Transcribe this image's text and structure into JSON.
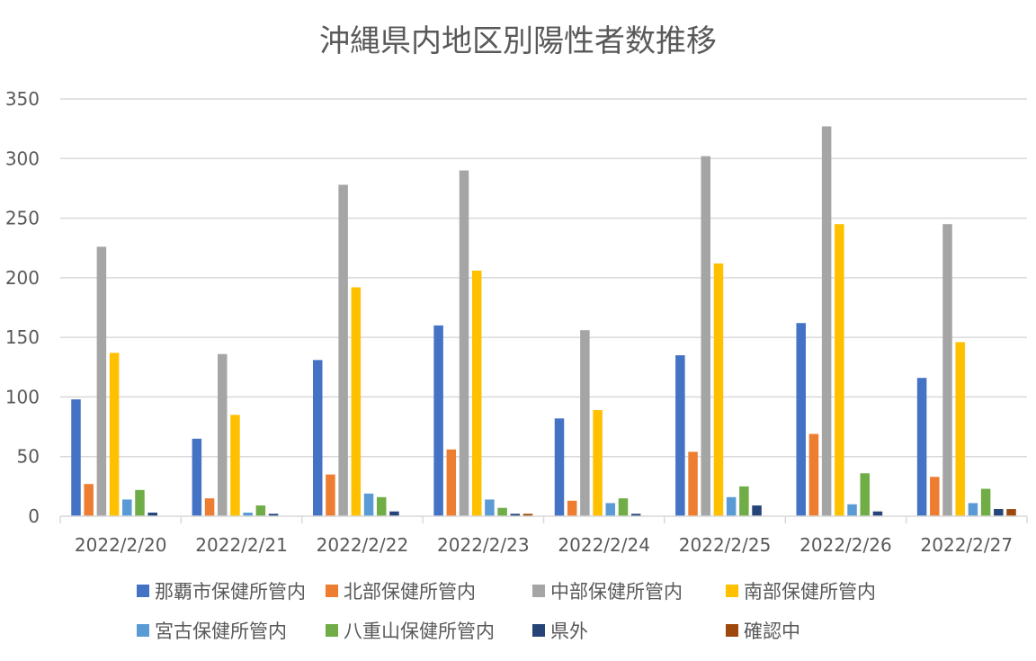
{
  "chart_data": {
    "type": "bar",
    "title": "沖縄県内地区別陽性者数推移",
    "xlabel": "",
    "ylabel": "",
    "ylim": [
      0,
      350
    ],
    "yticks": [
      0,
      50,
      100,
      150,
      200,
      250,
      300,
      350
    ],
    "grid": true,
    "legend_position": "bottom",
    "categories": [
      "2022/2/20",
      "2022/2/21",
      "2022/2/22",
      "2022/2/23",
      "2022/2/24",
      "2022/2/25",
      "2022/2/26",
      "2022/2/27"
    ],
    "series": [
      {
        "name": "那覇市保健所管内",
        "color": "#4472C4",
        "values": [
          98,
          65,
          131,
          160,
          82,
          135,
          162,
          116
        ]
      },
      {
        "name": "北部保健所管内",
        "color": "#ED7D31",
        "values": [
          27,
          15,
          35,
          56,
          13,
          54,
          69,
          33
        ]
      },
      {
        "name": "中部保健所管内",
        "color": "#A5A5A5",
        "values": [
          226,
          136,
          278,
          290,
          156,
          302,
          327,
          245
        ]
      },
      {
        "name": "南部保健所管内",
        "color": "#FFC000",
        "values": [
          137,
          85,
          192,
          206,
          89,
          212,
          245,
          146
        ]
      },
      {
        "name": "宮古保健所管内",
        "color": "#5B9BD5",
        "values": [
          14,
          3,
          19,
          14,
          11,
          16,
          10,
          11
        ]
      },
      {
        "name": "八重山保健所管内",
        "color": "#70AD47",
        "values": [
          22,
          9,
          16,
          7,
          15,
          25,
          36,
          23
        ]
      },
      {
        "name": "県外",
        "color": "#264478",
        "values": [
          3,
          2,
          4,
          2,
          2,
          9,
          4,
          6
        ]
      },
      {
        "name": "確認中",
        "color": "#9E480E",
        "values": [
          0,
          0,
          0,
          2,
          0,
          0,
          0,
          6
        ]
      }
    ]
  }
}
